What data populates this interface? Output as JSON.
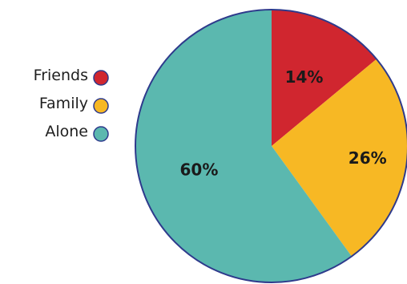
{
  "chart_data": {
    "type": "pie",
    "title": "",
    "slices": [
      {
        "label": "Friends",
        "value": 14,
        "display": "14%",
        "color": "#d0262f"
      },
      {
        "label": "Family",
        "value": 26,
        "display": "26%",
        "color": "#f7b824"
      },
      {
        "label": "Alone",
        "value": 60,
        "display": "60%",
        "color": "#5bb8af"
      }
    ],
    "legend_position": "left",
    "legend_marker": "circle",
    "outline_color": "#2e3a8c"
  }
}
